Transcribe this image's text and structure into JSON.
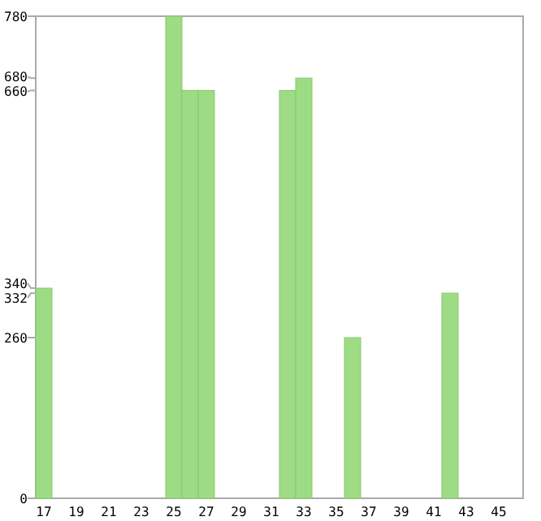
{
  "chart_data": {
    "type": "bar",
    "categories": [
      "17",
      null,
      "19",
      null,
      "21",
      null,
      "23",
      null,
      "25",
      null,
      "27",
      null,
      "29",
      null,
      "31",
      null,
      "33",
      null,
      "35",
      null,
      "37",
      null,
      "39",
      null,
      "41",
      null,
      "43",
      null,
      "45",
      null
    ],
    "values": [
      340,
      0,
      0,
      0,
      0,
      0,
      0,
      0,
      780,
      660,
      660,
      0,
      0,
      0,
      0,
      660,
      680,
      0,
      0,
      260,
      0,
      0,
      0,
      0,
      0,
      332,
      0,
      0,
      0,
      0
    ],
    "color": "#9ddc85",
    "ylim": [
      0,
      780
    ],
    "yticks": [
      0,
      260,
      332,
      340,
      660,
      680,
      780
    ],
    "grid": false
  }
}
